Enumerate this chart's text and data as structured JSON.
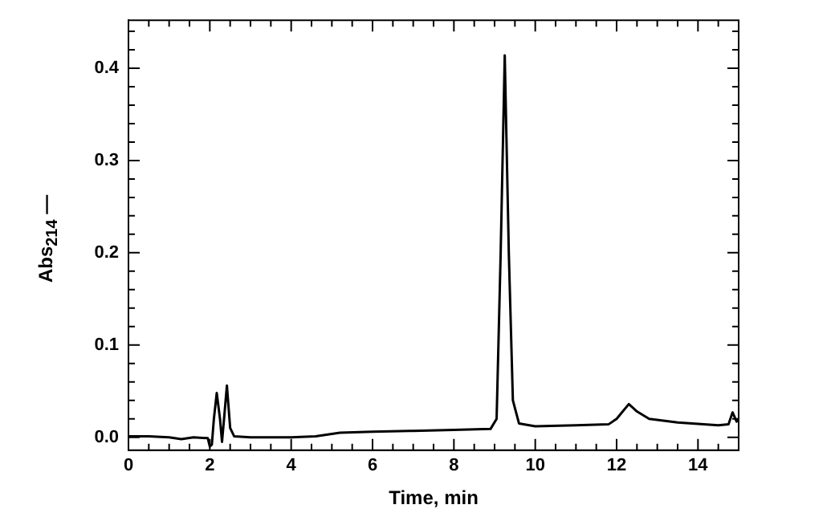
{
  "chart_data": {
    "type": "line",
    "xlabel": "Time, min",
    "ylabel": "Abs$_{214}$ —",
    "x": [
      0,
      0.5,
      1,
      1.3,
      1.6,
      1.95,
      2.0,
      2.05,
      2.1,
      2.17,
      2.25,
      2.3,
      2.35,
      2.42,
      2.5,
      2.6,
      3,
      4,
      4.6,
      5.2,
      6,
      7,
      8,
      8.9,
      9.05,
      9.15,
      9.25,
      9.35,
      9.45,
      9.6,
      10,
      11,
      11.8,
      12.0,
      12.3,
      12.5,
      12.8,
      13.5,
      14.5,
      14.75,
      14.85,
      14.95,
      15
    ],
    "series": [
      {
        "color": "#000000",
        "values": [
          0.001,
          0.001,
          0.0,
          -0.002,
          0.0,
          -0.001,
          -0.01,
          -0.008,
          0.02,
          0.048,
          0.02,
          -0.005,
          0.02,
          0.056,
          0.01,
          0.001,
          0.0,
          0.0,
          0.001,
          0.005,
          0.006,
          0.007,
          0.008,
          0.009,
          0.02,
          0.2,
          0.414,
          0.2,
          0.04,
          0.015,
          0.012,
          0.013,
          0.014,
          0.02,
          0.036,
          0.028,
          0.02,
          0.016,
          0.013,
          0.014,
          0.027,
          0.017,
          0.02
        ]
      }
    ],
    "xlim": [
      0,
      15
    ],
    "ylim": [
      -0.014,
      0.452
    ],
    "xticks": [
      0,
      {
        "value": 0.5,
        "label": null
      },
      {
        "value": 1,
        "label": null
      },
      {
        "value": 1.5,
        "label": null
      },
      2,
      {
        "value": 2.5,
        "label": null
      },
      {
        "value": 3,
        "label": null
      },
      {
        "value": 3.5,
        "label": null
      },
      4,
      {
        "value": 4.5,
        "label": null
      },
      {
        "value": 5,
        "label": null
      },
      {
        "value": 5.5,
        "label": null
      },
      6,
      {
        "value": 6.5,
        "label": null
      },
      {
        "value": 7,
        "label": null
      },
      {
        "value": 7.5,
        "label": null
      },
      8,
      {
        "value": 8.5,
        "label": null
      },
      {
        "value": 9,
        "label": null
      },
      {
        "value": 9.5,
        "label": null
      },
      10,
      {
        "value": 10.5,
        "label": null
      },
      {
        "value": 11,
        "label": null
      },
      {
        "value": 11.5,
        "label": null
      },
      12,
      {
        "value": 12.5,
        "label": null
      },
      {
        "value": 13,
        "label": null
      },
      {
        "value": 13.5,
        "label": null
      },
      14,
      {
        "value": 14.5,
        "label": null
      }
    ],
    "yticks": [
      {
        "value": 0,
        "label": "0.0"
      },
      {
        "value": 0.02,
        "label": null
      },
      {
        "value": 0.04,
        "label": null
      },
      {
        "value": 0.06,
        "label": null
      },
      {
        "value": 0.08,
        "label": null
      },
      {
        "value": 0.1,
        "label": "0.1"
      },
      {
        "value": 0.12,
        "label": null
      },
      {
        "value": 0.14,
        "label": null
      },
      {
        "value": 0.16,
        "label": null
      },
      {
        "value": 0.18,
        "label": null
      },
      {
        "value": 0.2,
        "label": "0.2"
      },
      {
        "value": 0.22,
        "label": null
      },
      {
        "value": 0.24,
        "label": null
      },
      {
        "value": 0.26,
        "label": null
      },
      {
        "value": 0.28,
        "label": null
      },
      {
        "value": 0.3,
        "label": "0.3"
      },
      {
        "value": 0.32,
        "label": null
      },
      {
        "value": 0.34,
        "label": null
      },
      {
        "value": 0.36,
        "label": null
      },
      {
        "value": 0.38,
        "label": null
      },
      {
        "value": 0.4,
        "label": "0.4"
      },
      {
        "value": 0.42,
        "label": null
      },
      {
        "value": 0.44,
        "label": null
      }
    ],
    "grid": false,
    "legend": false,
    "marker": "none",
    "line_style": "solid"
  }
}
